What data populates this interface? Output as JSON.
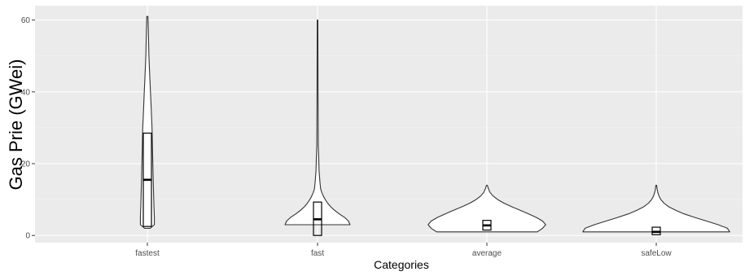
{
  "chart_data": {
    "type": "violin",
    "title": "",
    "xlabel": "Categories",
    "ylabel": "Gas Prie (GWei)",
    "categories": [
      "fastest",
      "fast",
      "average",
      "safeLow"
    ],
    "ylim": [
      -2,
      64
    ],
    "y_ticks": [
      0,
      20,
      40,
      60
    ],
    "grid": true,
    "colors": {
      "panel": "#ebebeb",
      "grid_major": "#ffffff",
      "violin_fill": "#ffffff",
      "outline": "#333333",
      "box": "#000000"
    },
    "violins": [
      {
        "category": "fastest",
        "profile": [
          [
            2,
            3.5
          ],
          [
            3,
            9
          ],
          [
            5,
            9
          ],
          [
            8,
            8.5
          ],
          [
            12,
            8
          ],
          [
            16,
            7.5
          ],
          [
            20,
            7
          ],
          [
            25,
            6.5
          ],
          [
            30,
            6
          ],
          [
            35,
            5
          ],
          [
            40,
            4
          ],
          [
            45,
            3
          ],
          [
            50,
            2
          ],
          [
            55,
            1.5
          ],
          [
            61,
            0.7
          ]
        ]
      },
      {
        "category": "fast",
        "profile": [
          [
            3,
            42
          ],
          [
            4,
            40
          ],
          [
            5,
            35
          ],
          [
            6,
            28
          ],
          [
            7,
            22
          ],
          [
            8,
            17
          ],
          [
            9,
            13
          ],
          [
            10,
            10
          ],
          [
            11,
            7.5
          ],
          [
            12,
            5.5
          ],
          [
            13,
            4
          ],
          [
            15,
            3
          ],
          [
            18,
            2
          ],
          [
            22,
            1.5
          ],
          [
            25,
            1
          ],
          [
            30,
            0.8
          ],
          [
            40,
            0.6
          ],
          [
            50,
            0.5
          ],
          [
            60,
            0.4
          ]
        ]
      },
      {
        "category": "average",
        "profile": [
          [
            1,
            65
          ],
          [
            2,
            72
          ],
          [
            3,
            76
          ],
          [
            4,
            72
          ],
          [
            5,
            64
          ],
          [
            6,
            54
          ],
          [
            7,
            43
          ],
          [
            8,
            32
          ],
          [
            9,
            22
          ],
          [
            10,
            14
          ],
          [
            11,
            8
          ],
          [
            12,
            4
          ],
          [
            13,
            2
          ],
          [
            14,
            0.5
          ]
        ]
      },
      {
        "category": "safeLow",
        "profile": [
          [
            1,
            95
          ],
          [
            2,
            92
          ],
          [
            3,
            80
          ],
          [
            4,
            65
          ],
          [
            5,
            50
          ],
          [
            6,
            36
          ],
          [
            7,
            25
          ],
          [
            8,
            16
          ],
          [
            9,
            10
          ],
          [
            10,
            6
          ],
          [
            11,
            3.5
          ],
          [
            12,
            2
          ],
          [
            13,
            1
          ],
          [
            14,
            0.5
          ]
        ]
      }
    ],
    "boxes": [
      {
        "category": "fastest",
        "q1": 2.5,
        "median": 15.5,
        "q3": 28.5
      },
      {
        "category": "fast",
        "q1": 0,
        "median": 4.5,
        "q3": 9.3
      },
      {
        "category": "average",
        "q1": 1.5,
        "median": 2.8,
        "q3": 4.2
      },
      {
        "category": "safeLow",
        "q1": 0.2,
        "median": 1,
        "q3": 2.3
      }
    ]
  }
}
